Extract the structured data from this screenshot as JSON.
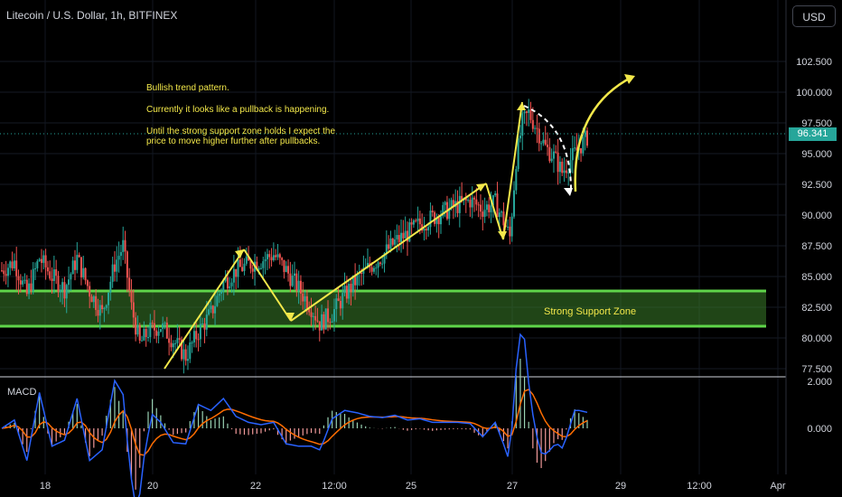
{
  "header": {
    "title": "Litecoin / U.S. Dollar, 1h, BITFINEX",
    "currency": "USD"
  },
  "current_price": "96.341",
  "notes": {
    "line1": "Bullish trend pattern.",
    "line2": "Currently it looks like a pullback is happening.",
    "line3": "Until the strong support zone holds I expect the",
    "line4": "price to move higher further after pullbacks."
  },
  "zone_label": "Strong Support Zone",
  "indicator_label": "MACD",
  "colors": {
    "up": "#26a69a",
    "down": "#ef5350",
    "zone": "#3fb63a",
    "annotation": "#f3e84a",
    "macd": "#2962ff",
    "signal": "#ff6d00"
  },
  "chart_data": [
    {
      "type": "candlestick",
      "title": "Litecoin / U.S. Dollar, 1h, BITFINEX",
      "x_tick_labels": [
        "18",
        "20",
        "22",
        "12:00",
        "25",
        "27",
        "29",
        "12:00",
        "Apr"
      ],
      "y_tick_labels": [
        "77.500",
        "80.000",
        "82.500",
        "85.000",
        "87.500",
        "90.000",
        "92.500",
        "95.000",
        "97.500",
        "100.000",
        "102.500"
      ],
      "ylim": [
        76.5,
        104.5
      ],
      "support_zone": [
        80.8,
        83.6
      ],
      "last_price": 96.341,
      "approx_close_path": [
        [
          0,
          85.5
        ],
        [
          6,
          86.2
        ],
        [
          12,
          83.5
        ],
        [
          18,
          86.5
        ],
        [
          24,
          85.0
        ],
        [
          30,
          84.0
        ],
        [
          36,
          86.5
        ],
        [
          42,
          83.8
        ],
        [
          48,
          82.0
        ],
        [
          54,
          86.0
        ],
        [
          58,
          87.5
        ],
        [
          62,
          82.5
        ],
        [
          66,
          79.5
        ],
        [
          70,
          80.5
        ],
        [
          76,
          81.0
        ],
        [
          82,
          79.8
        ],
        [
          88,
          78.5
        ],
        [
          94,
          80.5
        ],
        [
          100,
          82.0
        ],
        [
          106,
          84.5
        ],
        [
          112,
          85.5
        ],
        [
          118,
          86.0
        ],
        [
          124,
          86.3
        ],
        [
          130,
          86.8
        ],
        [
          136,
          85.5
        ],
        [
          142,
          84.0
        ],
        [
          148,
          82.5
        ],
        [
          152,
          81.2
        ],
        [
          158,
          82.0
        ],
        [
          164,
          83.5
        ],
        [
          170,
          84.8
        ],
        [
          176,
          85.8
        ],
        [
          182,
          86.7
        ],
        [
          188,
          87.8
        ],
        [
          194,
          88.5
        ],
        [
          200,
          89.3
        ],
        [
          206,
          89.8
        ],
        [
          212,
          90.3
        ],
        [
          218,
          90.8
        ],
        [
          224,
          91.2
        ],
        [
          230,
          90.5
        ],
        [
          236,
          91.0
        ],
        [
          240,
          89.5
        ],
        [
          243,
          88.2
        ],
        [
          246,
          94.5
        ],
        [
          249,
          97.5
        ],
        [
          252,
          98.3
        ],
        [
          256,
          97.0
        ],
        [
          260,
          95.5
        ],
        [
          264,
          94.8
        ],
        [
          268,
          93.5
        ],
        [
          272,
          94.5
        ],
        [
          276,
          95.5
        ],
        [
          280,
          96.341
        ]
      ]
    },
    {
      "type": "line",
      "title": "MACD",
      "y_tick_labels": [
        "0.000",
        "2.000"
      ],
      "series": []
    }
  ]
}
